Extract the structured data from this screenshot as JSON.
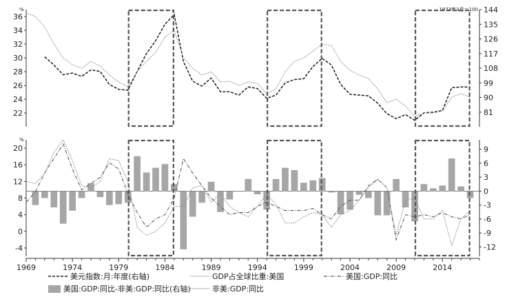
{
  "chart_data": [
    {
      "type": "line",
      "panel": "top",
      "unit_left": "%",
      "unit_right": "1973年3月＝100",
      "xlim": [
        1969,
        2018
      ],
      "ylim_left": [
        20,
        37
      ],
      "ylim_right": [
        72,
        144
      ],
      "yticks_left": [
        22,
        24,
        26,
        28,
        30,
        32,
        34,
        36
      ],
      "yticks_right": [
        81,
        90,
        99,
        108,
        117,
        126,
        135,
        144
      ],
      "highlight_periods": [
        [
          1980,
          1985
        ],
        [
          1995,
          2001
        ],
        [
          2011,
          2017
        ]
      ],
      "series": [
        {
          "name": "美元指数:月:年度(右轴)",
          "axis": "right",
          "style": "dashed",
          "color": "#1a1a1a",
          "points": [
            [
              1971,
              115
            ],
            [
              1972,
              110
            ],
            [
              1973,
              104
            ],
            [
              1974,
              105
            ],
            [
              1975,
              103
            ],
            [
              1976,
              107
            ],
            [
              1977,
              106
            ],
            [
              1978,
              98
            ],
            [
              1979,
              95
            ],
            [
              1980,
              94.5
            ],
            [
              1981,
              106
            ],
            [
              1982,
              117
            ],
            [
              1983,
              125
            ],
            [
              1984,
              135
            ],
            [
              1985,
              141
            ],
            [
              1986,
              112
            ],
            [
              1987,
              100
            ],
            [
              1988,
              97
            ],
            [
              1989,
              102
            ],
            [
              1990,
              93.5
            ],
            [
              1991,
              93.5
            ],
            [
              1992,
              91.5
            ],
            [
              1993,
              96.5
            ],
            [
              1994,
              95.5
            ],
            [
              1995,
              89.5
            ],
            [
              1996,
              91.5
            ],
            [
              1997,
              99
            ],
            [
              1998,
              101
            ],
            [
              1999,
              101.5
            ],
            [
              2000,
              109
            ],
            [
              2001,
              114
            ],
            [
              2002,
              110
            ],
            [
              2003,
              98
            ],
            [
              2004,
              92
            ],
            [
              2005,
              91.5
            ],
            [
              2006,
              91
            ],
            [
              2007,
              86.5
            ],
            [
              2008,
              80
            ],
            [
              2009,
              77
            ],
            [
              2010,
              79.5
            ],
            [
              2011,
              76
            ],
            [
              2012,
              80.5
            ],
            [
              2013,
              81
            ],
            [
              2014,
              82
            ],
            [
              2015,
              96
            ],
            [
              2016,
              96.5
            ],
            [
              2017,
              96.5
            ]
          ]
        },
        {
          "name": "GDP占全球比重:美国",
          "axis": "left",
          "style": "dotted",
          "color": "#8a8a8a",
          "points": [
            [
              1969,
              36.5
            ],
            [
              1970,
              36
            ],
            [
              1971,
              34.5
            ],
            [
              1972,
              32
            ],
            [
              1973,
              30
            ],
            [
              1974,
              29
            ],
            [
              1975,
              28.5
            ],
            [
              1976,
              29.5
            ],
            [
              1977,
              28.8
            ],
            [
              1978,
              27.5
            ],
            [
              1979,
              26.5
            ],
            [
              1980,
              25.8
            ],
            [
              1981,
              28
            ],
            [
              1982,
              29.5
            ],
            [
              1983,
              30.8
            ],
            [
              1984,
              33
            ],
            [
              1985,
              34
            ],
            [
              1986,
              30
            ],
            [
              1987,
              28.5
            ],
            [
              1988,
              27.5
            ],
            [
              1989,
              28
            ],
            [
              1990,
              26.5
            ],
            [
              1991,
              26.6
            ],
            [
              1992,
              26
            ],
            [
              1993,
              26.5
            ],
            [
              1994,
              26.3
            ],
            [
              1995,
              24.8
            ],
            [
              1996,
              25.5
            ],
            [
              1997,
              28
            ],
            [
              1998,
              29.5
            ],
            [
              1999,
              30
            ],
            [
              2000,
              31
            ],
            [
              2001,
              32
            ],
            [
              2002,
              31.8
            ],
            [
              2003,
              29.5
            ],
            [
              2004,
              28.2
            ],
            [
              2005,
              27.5
            ],
            [
              2006,
              27
            ],
            [
              2007,
              25.5
            ],
            [
              2008,
              23.5
            ],
            [
              2009,
              24
            ],
            [
              2010,
              23
            ],
            [
              2011,
              21.5
            ],
            [
              2012,
              22
            ],
            [
              2013,
              22
            ],
            [
              2014,
              22.3
            ],
            [
              2015,
              24.3
            ],
            [
              2016,
              24.8
            ],
            [
              2017,
              24.3
            ]
          ]
        }
      ]
    },
    {
      "type": "bar",
      "panel": "bottom",
      "unit_left": "%",
      "xlim": [
        1969,
        2018
      ],
      "ylim_left": [
        -6,
        22
      ],
      "ylim_right": [
        -14,
        11
      ],
      "yticks_left": [
        -4,
        0,
        4,
        8,
        12,
        16,
        20
      ],
      "yticks_right": [
        -12,
        -9,
        -6,
        -3,
        0,
        3,
        6,
        9
      ],
      "xticks": [
        1969,
        1974,
        1979,
        1984,
        1989,
        1994,
        1999,
        2004,
        2009,
        2014
      ],
      "highlight_periods": [
        [
          1980,
          1985
        ],
        [
          1995,
          2001
        ],
        [
          2011,
          2017
        ]
      ],
      "bars": {
        "name": "美国:GDP:同比-非美:GDP:同比(右轴)",
        "axis": "right",
        "color": "#a6a6a6",
        "x": [
          1970,
          1971,
          1972,
          1973,
          1974,
          1975,
          1976,
          1977,
          1978,
          1979,
          1980,
          1981,
          1982,
          1983,
          1984,
          1985,
          1986,
          1987,
          1988,
          1989,
          1990,
          1991,
          1992,
          1993,
          1994,
          1995,
          1996,
          1997,
          1998,
          1999,
          2000,
          2001,
          2002,
          2003,
          2004,
          2005,
          2006,
          2007,
          2008,
          2009,
          2010,
          2011,
          2012,
          2013,
          2014,
          2015,
          2016,
          2017
        ],
        "values": [
          -3,
          -1.5,
          -3.5,
          -7,
          -4.2,
          -1.5,
          1.7,
          -1.3,
          -3,
          -2.8,
          -2.5,
          7.5,
          4,
          5,
          5.8,
          1.5,
          -12.5,
          -5.5,
          -2.5,
          2,
          -4.5,
          -1.8,
          0,
          2.6,
          -0.7,
          -4,
          2.6,
          5,
          4.5,
          1.8,
          2.3,
          2.8,
          -0.3,
          -5,
          -4,
          -0.8,
          -1.5,
          -5.2,
          -5.2,
          2.6,
          -3.5,
          -6.5,
          1.5,
          0.6,
          1.2,
          7,
          1,
          -1.5
        ]
      },
      "series": [
        {
          "name": "美国:GDP:同比",
          "axis": "left",
          "style": "dash-dot",
          "color": "#5a5a5a",
          "points": [
            [
              1969,
              7
            ],
            [
              1970,
              9.5
            ],
            [
              1971,
              14
            ],
            [
              1972,
              17.5
            ],
            [
              1973,
              21
            ],
            [
              1974,
              15
            ],
            [
              1975,
              10
            ],
            [
              1976,
              11.5
            ],
            [
              1977,
              13
            ],
            [
              1978,
              16.5
            ],
            [
              1979,
              15
            ],
            [
              1980,
              9
            ],
            [
              1981,
              4.5
            ],
            [
              1982,
              1
            ],
            [
              1983,
              3
            ],
            [
              1984,
              4
            ],
            [
              1985,
              8
            ],
            [
              1986,
              17.5
            ],
            [
              1987,
              14
            ],
            [
              1988,
              11
            ],
            [
              1989,
              8
            ],
            [
              1990,
              6
            ],
            [
              1991,
              4
            ],
            [
              1992,
              4.5
            ],
            [
              1993,
              4.5
            ],
            [
              1994,
              6
            ],
            [
              1995,
              7
            ],
            [
              1996,
              6
            ],
            [
              1997,
              5
            ],
            [
              1998,
              5
            ],
            [
              1999,
              5
            ],
            [
              2000,
              5.5
            ],
            [
              2001,
              4
            ],
            [
              2002,
              3
            ],
            [
              2003,
              6
            ],
            [
              2004,
              7.5
            ],
            [
              2005,
              7.5
            ],
            [
              2006,
              11
            ],
            [
              2007,
              12.5
            ],
            [
              2008,
              10.5
            ],
            [
              2009,
              -2
            ],
            [
              2010,
              4
            ],
            [
              2011,
              3.5
            ],
            [
              2012,
              4
            ],
            [
              2013,
              3.5
            ],
            [
              2014,
              4.5
            ],
            [
              2015,
              3.5
            ],
            [
              2016,
              3
            ],
            [
              2017,
              4
            ]
          ]
        },
        {
          "name": "非美:GDP:同比",
          "axis": "left",
          "style": "dotted",
          "color": "#8a8a8a",
          "points": [
            [
              1969,
              12
            ],
            [
              1970,
              11.5
            ],
            [
              1971,
              14
            ],
            [
              1972,
              19
            ],
            [
              1973,
              22
            ],
            [
              1974,
              17
            ],
            [
              1975,
              11
            ],
            [
              1976,
              10.5
            ],
            [
              1977,
              12
            ],
            [
              1978,
              17.5
            ],
            [
              1979,
              17
            ],
            [
              1980,
              12
            ],
            [
              1981,
              1
            ],
            [
              1982,
              -1
            ],
            [
              1983,
              0
            ],
            [
              1984,
              2
            ],
            [
              1985,
              6
            ],
            [
              1986,
              6
            ],
            [
              1987,
              10.5
            ],
            [
              1988,
              11
            ],
            [
              1989,
              7
            ],
            [
              1990,
              9
            ],
            [
              1991,
              6
            ],
            [
              1992,
              4.5
            ],
            [
              1993,
              3.5
            ],
            [
              1994,
              6
            ],
            [
              1995,
              9
            ],
            [
              1996,
              6.5
            ],
            [
              1997,
              2
            ],
            [
              1998,
              2
            ],
            [
              1999,
              3.5
            ],
            [
              2000,
              4.5
            ],
            [
              2001,
              4
            ],
            [
              2002,
              1
            ],
            [
              2003,
              4
            ],
            [
              2004,
              5
            ],
            [
              2005,
              7.5
            ],
            [
              2006,
              10.5
            ],
            [
              2007,
              12.5
            ],
            [
              2008,
              10.5
            ],
            [
              2009,
              -1
            ],
            [
              2010,
              7.5
            ],
            [
              2011,
              8
            ],
            [
              2012,
              3
            ],
            [
              2013,
              3
            ],
            [
              2014,
              5
            ],
            [
              2015,
              -3.5
            ],
            [
              2016,
              3
            ],
            [
              2017,
              5
            ]
          ]
        }
      ]
    }
  ],
  "legend": [
    {
      "label": "美元指数:月:年度(右轴)",
      "kind": "line-dashed",
      "color": "#1a1a1a"
    },
    {
      "label": "GDP占全球比重:美国",
      "kind": "line-dotted",
      "color": "#8a8a8a"
    },
    {
      "label": "美国:GDP:同比",
      "kind": "line-dashdot",
      "color": "#5a5a5a"
    },
    {
      "label": "美国:GDP:同比-非美:GDP:同比(右轴)",
      "kind": "bar",
      "color": "#a6a6a6"
    },
    {
      "label": "非美:GDP:同比",
      "kind": "line-dotted",
      "color": "#8a8a8a"
    }
  ]
}
